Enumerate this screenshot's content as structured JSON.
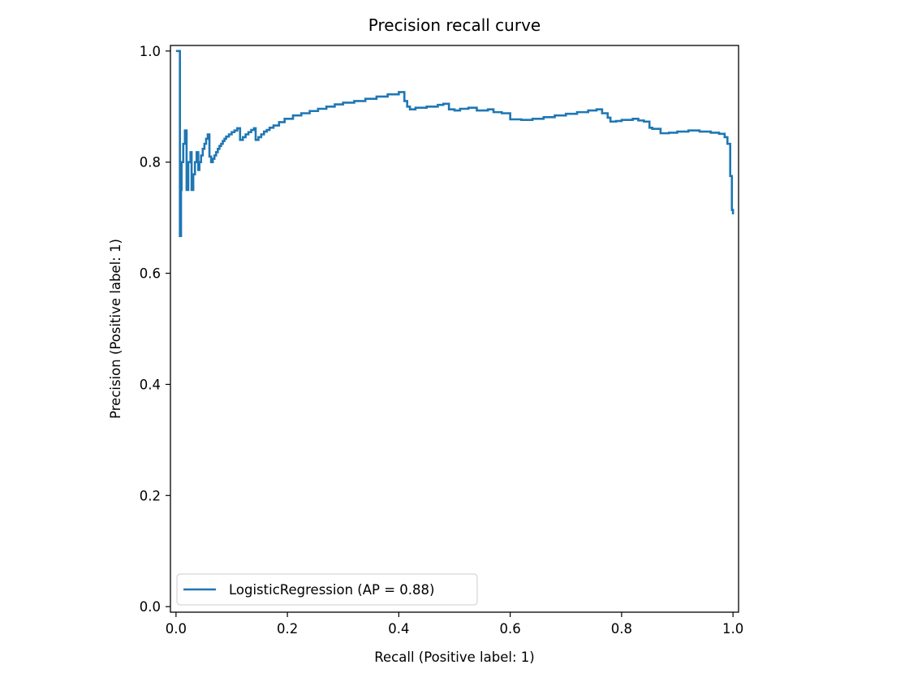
{
  "chart_data": {
    "type": "line",
    "title": "Precision recall curve",
    "xlabel": "Recall (Positive label: 1)",
    "ylabel": "Precision (Positive label: 1)",
    "xlim": [
      -0.01,
      1.01
    ],
    "ylim": [
      -0.01,
      1.01
    ],
    "xticks": [
      0.0,
      0.2,
      0.4,
      0.6,
      0.8,
      1.0
    ],
    "xtick_labels": [
      "0.0",
      "0.2",
      "0.4",
      "0.6",
      "0.8",
      "1.0"
    ],
    "yticks": [
      0.0,
      0.2,
      0.4,
      0.6,
      0.8,
      1.0
    ],
    "ytick_labels": [
      "0.0",
      "0.2",
      "0.4",
      "0.6",
      "0.8",
      "1.0"
    ],
    "grid": false,
    "legend": {
      "placement": "lower-left"
    },
    "series": [
      {
        "name": "LogisticRegression (AP = 0.88)",
        "color": "#1f77b4",
        "drawstyle": "steps-post",
        "x": [
          0.0,
          0.007,
          0.007,
          0.009,
          0.01,
          0.013,
          0.016,
          0.019,
          0.022,
          0.026,
          0.028,
          0.031,
          0.034,
          0.037,
          0.04,
          0.042,
          0.045,
          0.048,
          0.051,
          0.054,
          0.057,
          0.06,
          0.063,
          0.066,
          0.069,
          0.072,
          0.075,
          0.078,
          0.081,
          0.084,
          0.087,
          0.09,
          0.095,
          0.1,
          0.105,
          0.11,
          0.115,
          0.12,
          0.125,
          0.13,
          0.135,
          0.14,
          0.143,
          0.148,
          0.153,
          0.158,
          0.163,
          0.168,
          0.175,
          0.185,
          0.195,
          0.21,
          0.225,
          0.24,
          0.255,
          0.27,
          0.285,
          0.3,
          0.32,
          0.34,
          0.36,
          0.38,
          0.4,
          0.41,
          0.415,
          0.42,
          0.43,
          0.45,
          0.47,
          0.48,
          0.49,
          0.5,
          0.51,
          0.525,
          0.54,
          0.56,
          0.57,
          0.585,
          0.6,
          0.62,
          0.64,
          0.66,
          0.68,
          0.7,
          0.72,
          0.74,
          0.755,
          0.765,
          0.775,
          0.78,
          0.79,
          0.8,
          0.82,
          0.83,
          0.84,
          0.85,
          0.855,
          0.87,
          0.885,
          0.9,
          0.92,
          0.94,
          0.96,
          0.975,
          0.985,
          0.99,
          0.995,
          0.998,
          1.0
        ],
        "y": [
          1.0,
          1.0,
          0.667,
          0.75,
          0.8,
          0.833,
          0.857,
          0.75,
          0.8,
          0.818,
          0.75,
          0.778,
          0.8,
          0.818,
          0.786,
          0.8,
          0.812,
          0.824,
          0.833,
          0.842,
          0.85,
          0.81,
          0.8,
          0.806,
          0.812,
          0.818,
          0.824,
          0.829,
          0.833,
          0.838,
          0.842,
          0.846,
          0.85,
          0.854,
          0.857,
          0.861,
          0.84,
          0.845,
          0.85,
          0.854,
          0.858,
          0.861,
          0.84,
          0.845,
          0.85,
          0.855,
          0.858,
          0.862,
          0.866,
          0.872,
          0.878,
          0.884,
          0.888,
          0.892,
          0.896,
          0.9,
          0.904,
          0.907,
          0.91,
          0.914,
          0.918,
          0.922,
          0.926,
          0.91,
          0.9,
          0.895,
          0.898,
          0.9,
          0.903,
          0.905,
          0.895,
          0.893,
          0.896,
          0.898,
          0.893,
          0.895,
          0.89,
          0.888,
          0.877,
          0.876,
          0.878,
          0.881,
          0.884,
          0.887,
          0.89,
          0.893,
          0.895,
          0.888,
          0.88,
          0.873,
          0.874,
          0.876,
          0.878,
          0.875,
          0.873,
          0.862,
          0.86,
          0.852,
          0.853,
          0.855,
          0.857,
          0.855,
          0.853,
          0.851,
          0.845,
          0.833,
          0.775,
          0.714,
          0.706
        ]
      }
    ]
  }
}
